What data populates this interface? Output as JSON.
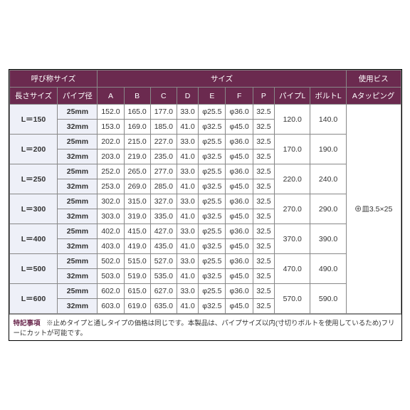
{
  "headers": {
    "group_left": "呼び称サイズ",
    "group_mid": "サイズ",
    "group_right": "使用ビス",
    "length": "長さサイズ",
    "pipe_dia": "パイプ径",
    "A": "A",
    "B": "B",
    "C": "C",
    "D": "D",
    "E": "E",
    "F": "F",
    "P": "P",
    "pipeL": "パイプL",
    "boltL": "ボルトL",
    "tapping": "Aタッピング"
  },
  "groups": [
    {
      "length": "L＝150",
      "pipeL": "120.0",
      "boltL": "140.0",
      "rows": [
        {
          "dia": "25mm",
          "A": "152.0",
          "B": "165.0",
          "C": "177.0",
          "D": "33.0",
          "E": "φ25.5",
          "F": "φ36.0",
          "P": "32.5"
        },
        {
          "dia": "32mm",
          "A": "153.0",
          "B": "169.0",
          "C": "185.0",
          "D": "41.0",
          "E": "φ32.5",
          "F": "φ45.0",
          "P": "32.5"
        }
      ]
    },
    {
      "length": "L＝200",
      "pipeL": "170.0",
      "boltL": "190.0",
      "rows": [
        {
          "dia": "25mm",
          "A": "202.0",
          "B": "215.0",
          "C": "227.0",
          "D": "33.0",
          "E": "φ25.5",
          "F": "φ36.0",
          "P": "32.5"
        },
        {
          "dia": "32mm",
          "A": "203.0",
          "B": "219.0",
          "C": "235.0",
          "D": "41.0",
          "E": "φ32.5",
          "F": "φ45.0",
          "P": "32.5"
        }
      ]
    },
    {
      "length": "L＝250",
      "pipeL": "220.0",
      "boltL": "240.0",
      "rows": [
        {
          "dia": "25mm",
          "A": "252.0",
          "B": "265.0",
          "C": "277.0",
          "D": "33.0",
          "E": "φ25.5",
          "F": "φ36.0",
          "P": "32.5"
        },
        {
          "dia": "32mm",
          "A": "253.0",
          "B": "269.0",
          "C": "285.0",
          "D": "41.0",
          "E": "φ32.5",
          "F": "φ45.0",
          "P": "32.5"
        }
      ]
    },
    {
      "length": "L＝300",
      "pipeL": "270.0",
      "boltL": "290.0",
      "rows": [
        {
          "dia": "25mm",
          "A": "302.0",
          "B": "315.0",
          "C": "327.0",
          "D": "33.0",
          "E": "φ25.5",
          "F": "φ36.0",
          "P": "32.5"
        },
        {
          "dia": "32mm",
          "A": "303.0",
          "B": "319.0",
          "C": "335.0",
          "D": "41.0",
          "E": "φ32.5",
          "F": "φ45.0",
          "P": "32.5"
        }
      ]
    },
    {
      "length": "L＝400",
      "pipeL": "370.0",
      "boltL": "390.0",
      "rows": [
        {
          "dia": "25mm",
          "A": "402.0",
          "B": "415.0",
          "C": "427.0",
          "D": "33.0",
          "E": "φ25.5",
          "F": "φ36.0",
          "P": "32.5"
        },
        {
          "dia": "32mm",
          "A": "403.0",
          "B": "419.0",
          "C": "435.0",
          "D": "41.0",
          "E": "φ32.5",
          "F": "φ45.0",
          "P": "32.5"
        }
      ]
    },
    {
      "length": "L＝500",
      "pipeL": "470.0",
      "boltL": "490.0",
      "rows": [
        {
          "dia": "25mm",
          "A": "502.0",
          "B": "515.0",
          "C": "527.0",
          "D": "33.0",
          "E": "φ25.5",
          "F": "φ36.0",
          "P": "32.5"
        },
        {
          "dia": "32mm",
          "A": "503.0",
          "B": "519.0",
          "C": "535.0",
          "D": "41.0",
          "E": "φ32.5",
          "F": "φ45.0",
          "P": "32.5"
        }
      ]
    },
    {
      "length": "L＝600",
      "pipeL": "570.0",
      "boltL": "590.0",
      "rows": [
        {
          "dia": "25mm",
          "A": "602.0",
          "B": "615.0",
          "C": "627.0",
          "D": "33.0",
          "E": "φ25.5",
          "F": "φ36.0",
          "P": "32.5"
        },
        {
          "dia": "32mm",
          "A": "603.0",
          "B": "619.0",
          "C": "635.0",
          "D": "41.0",
          "E": "φ32.5",
          "F": "φ45.0",
          "P": "32.5"
        }
      ]
    }
  ],
  "tapping_value": "⊕皿3.5×25",
  "note_label": "特記事項",
  "note_text": "※止めタイプと通しタイプの価格は同じです。本製品は、パイプサイズ以内(寸切りボルトを使用しているため)フリーにカットが可能です。"
}
